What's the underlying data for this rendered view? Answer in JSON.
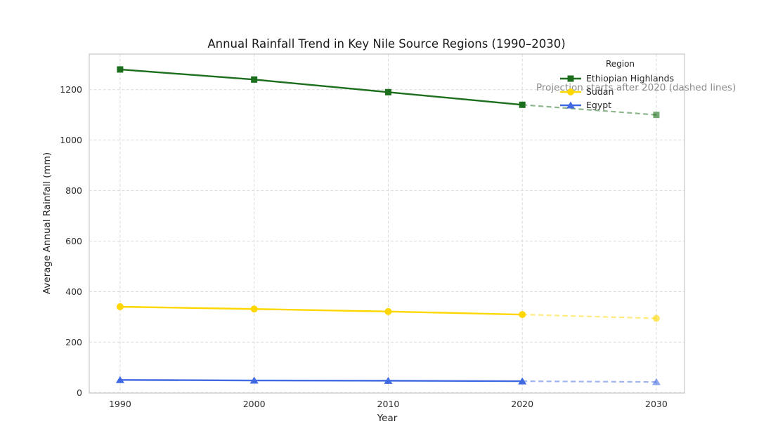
{
  "chart_data": {
    "type": "line",
    "title": "Annual Rainfall Trend in Key Nile Source Regions (1990–2030)",
    "xlabel": "Year",
    "ylabel": "Average Annual Rainfall (mm)",
    "x": [
      1990,
      2000,
      2010,
      2020,
      2030
    ],
    "xtick_labels": [
      "1990",
      "2000",
      "2010",
      "2020",
      "2030"
    ],
    "yticks": [
      0,
      200,
      400,
      600,
      800,
      1000,
      1200
    ],
    "xlim": [
      1987.7,
      2032.1
    ],
    "ylim": [
      -2,
      1341
    ],
    "grid": true,
    "legend_title": "Region",
    "legend_position": "upper right",
    "projection_start_year": 2020,
    "annotation": "Projection starts after 2020 (dashed lines)",
    "annotation_color": "#8c8c8c",
    "series": [
      {
        "name": "Ethiopian Highlands",
        "color": "#1b6e1b",
        "marker": "square",
        "values": [
          1280,
          1240,
          1190,
          1140,
          1100
        ]
      },
      {
        "name": "Sudan",
        "color": "#ffd700",
        "marker": "circle",
        "values": [
          340,
          331,
          321,
          309,
          294
        ]
      },
      {
        "name": "Egypt",
        "color": "#4169e1",
        "marker": "triangle",
        "values": [
          50,
          48,
          47,
          45,
          42
        ]
      }
    ]
  }
}
